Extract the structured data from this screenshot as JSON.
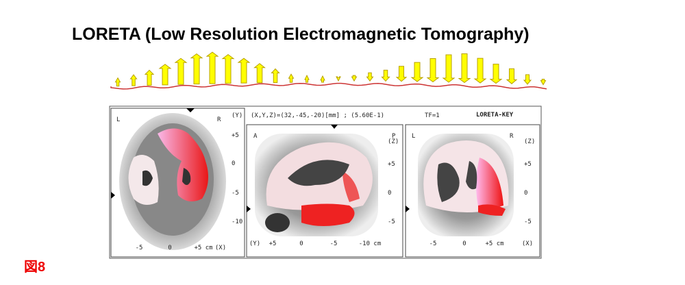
{
  "title": "LORETA (Low Resolution Electromagnetic Tomography)",
  "figure_label": "図8",
  "panel_header": {
    "coords": "(X,Y,Z)=(32,-45,-20)[mm] ; (5.60E-1)",
    "tf": "TF=1",
    "software": "LORETA-KEY"
  },
  "panels": [
    {
      "corner_left": "L",
      "corner_right": "R",
      "side_axis": "(Y)",
      "side_ticks": [
        "+5",
        "0",
        "-5",
        "-10"
      ],
      "bottom_ticks": [
        "-5",
        "0",
        "+5 cm",
        "(X)"
      ]
    },
    {
      "corner_left": "A",
      "corner_right": "P",
      "side_axis": "(Z)",
      "side_ticks": [
        "+5",
        "0",
        "-5"
      ],
      "bottom_ticks": [
        "(Y)",
        "+5",
        "0",
        "-5",
        "-10 cm"
      ]
    },
    {
      "corner_left": "L",
      "corner_right": "R",
      "side_axis": "(Z)",
      "side_ticks": [
        "+5",
        "0",
        "-5"
      ],
      "bottom_ticks": [
        "-5",
        "0",
        "+5 cm",
        "(X)"
      ]
    }
  ]
}
